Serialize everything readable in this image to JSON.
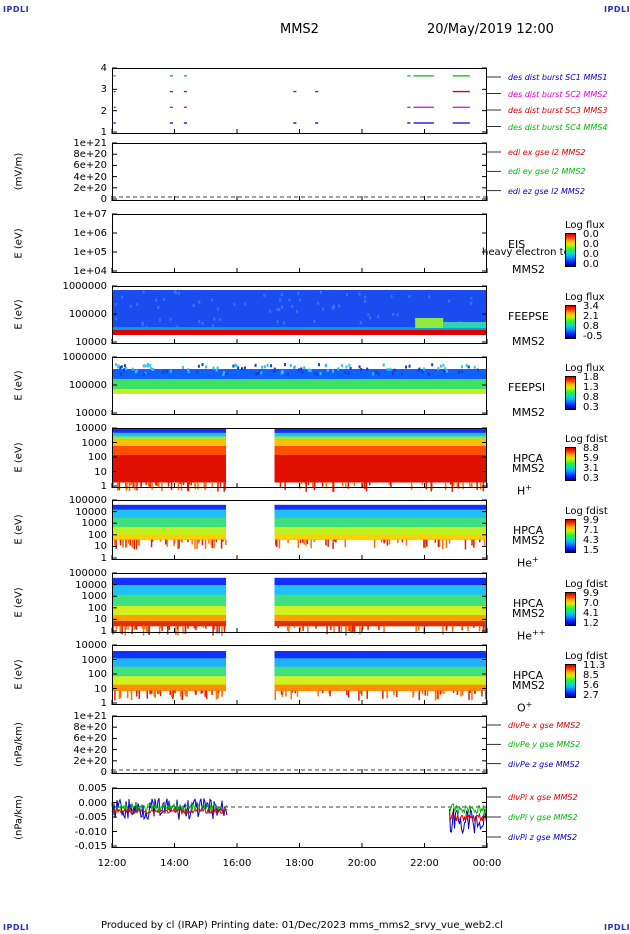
{
  "header": {
    "corner_left_top": "IPDLI",
    "corner_right_top": "IPDLI",
    "corner_left_bottom": "IPDLI",
    "corner_right_bottom": "IPDLI",
    "spacecraft": "MMS2",
    "datetime": "20/May/2019 12:00"
  },
  "footer": {
    "text": "Produced by cl (IRAP)   Printing date: 01/Dec/2023   mms_mms2_srvy_vue_web2.cl"
  },
  "colors": {
    "blue": "#0000cc",
    "magenta": "#dd00dd",
    "red": "#dd0000",
    "green": "#00bb00",
    "black": "#000000"
  },
  "chart_data": {
    "type": "heatmap",
    "x_tick_labels": [
      "12:00",
      "14:00",
      "16:00",
      "18:00",
      "20:00",
      "22:00",
      "00:00"
    ],
    "x_hours": [
      12,
      14,
      16,
      18,
      20,
      22,
      24
    ],
    "xlim_hours": [
      12,
      24
    ],
    "panels": [
      {
        "id": "burst",
        "yticks": [
          "4",
          "3",
          "2",
          "1"
        ],
        "ylabel": "",
        "legend": [
          {
            "text": "des dist burst SC1 MMS1",
            "color": "#0000cc"
          },
          {
            "text": "des dist burst SC2 MMS2",
            "color": "#dd00dd"
          },
          {
            "text": "des dist burst SC3 MMS3",
            "color": "#dd0000"
          },
          {
            "text": "des dist burst SC4 MMS4",
            "color": "#00bb00"
          }
        ],
        "segments": [
          {
            "level": 4,
            "color": "#00bb00",
            "ranges": [
              [
                12.05,
                12.12
              ],
              [
                13.85,
                13.95
              ],
              [
                14.3,
                14.4
              ],
              [
                21.45,
                21.55
              ],
              [
                21.65,
                22.3
              ],
              [
                22.9,
                23.45
              ]
            ]
          },
          {
            "level": 3,
            "color": "#dd0000",
            "ranges": [
              [
                12.05,
                12.12
              ],
              [
                13.85,
                13.95
              ],
              [
                14.3,
                14.4
              ],
              [
                17.8,
                17.9
              ],
              [
                18.5,
                18.6
              ],
              [
                22.9,
                23.45
              ]
            ]
          },
          {
            "level": 2,
            "color": "#dd00dd",
            "ranges": [
              [
                12.05,
                12.12
              ],
              [
                13.85,
                13.95
              ],
              [
                14.3,
                14.4
              ],
              [
                21.45,
                21.55
              ],
              [
                21.65,
                22.3
              ],
              [
                22.9,
                23.45
              ]
            ]
          },
          {
            "level": 1,
            "color": "#0000cc",
            "ranges": [
              [
                12.05,
                12.12
              ],
              [
                13.85,
                13.95
              ],
              [
                14.3,
                14.4
              ],
              [
                17.8,
                17.9
              ],
              [
                18.5,
                18.6
              ],
              [
                21.45,
                21.55
              ],
              [
                21.65,
                22.3
              ],
              [
                22.9,
                23.45
              ]
            ]
          }
        ]
      },
      {
        "id": "edi",
        "ylabel": "(mV/m)",
        "yticks": [
          "1e+21",
          "8e+20",
          "6e+20",
          "4e+20",
          "2e+20",
          "0"
        ],
        "legend": [
          {
            "text": "edi ex gse l2 MMS2",
            "color": "#dd0000"
          },
          {
            "text": "edi ey gse l2 MMS2",
            "color": "#00bb00"
          },
          {
            "text": "edi ez gse l2 MMS2",
            "color": "#0000cc"
          }
        ]
      },
      {
        "id": "eis",
        "ylabel": "E (eV)",
        "yticks": [
          "1e+07",
          "1e+06",
          "1e+05",
          "1e+04"
        ],
        "side_labels": [
          "EIS",
          "MMS2"
        ],
        "overflow_label": "heavy electron to",
        "cb_title": "Log flux",
        "cb_values": [
          "0.0",
          "0.0",
          "0.0",
          "0.0"
        ]
      },
      {
        "id": "feepse",
        "ylabel": "E (eV)",
        "yticks": [
          "1000000",
          "100000",
          "10000"
        ],
        "side_labels": [
          "FEEPSE",
          "MMS2"
        ],
        "cb_title": "Log flux",
        "cb_values": [
          "3.4",
          "2.1",
          "0.8",
          "-0.5"
        ]
      },
      {
        "id": "feepsi",
        "ylabel": "E (eV)",
        "yticks": [
          "1000000",
          "100000",
          "10000"
        ],
        "side_labels": [
          "FEEPSI",
          "MMS2"
        ],
        "cb_title": "Log flux",
        "cb_values": [
          "1.8",
          "1.3",
          "0.8",
          "0.3"
        ]
      },
      {
        "id": "hpca_h",
        "ylabel": "E (eV)",
        "yticks": [
          "10000",
          "1000",
          "100",
          "10",
          "1"
        ],
        "side_labels": [
          "HPCA",
          "MMS2"
        ],
        "species": "H",
        "species_sup": "+",
        "cb_title": "Log fdist",
        "cb_values": [
          "8.8",
          "5.9",
          "3.1",
          "0.3"
        ]
      },
      {
        "id": "hpca_he",
        "ylabel": "E (eV)",
        "yticks": [
          "100000",
          "10000",
          "1000",
          "100",
          "10",
          "1"
        ],
        "side_labels": [
          "HPCA",
          "MMS2"
        ],
        "species": "He",
        "species_sup": "+",
        "cb_title": "Log fdist",
        "cb_values": [
          "9.9",
          "7.1",
          "4.3",
          "1.5"
        ]
      },
      {
        "id": "hpca_hepp",
        "ylabel": "E (eV)",
        "yticks": [
          "100000",
          "10000",
          "1000",
          "100",
          "10",
          "1"
        ],
        "side_labels": [
          "HPCA",
          "MMS2"
        ],
        "species": "He",
        "species_sup": "++",
        "cb_title": "Log fdist",
        "cb_values": [
          "9.9",
          "7.0",
          "4.1",
          "1.2"
        ]
      },
      {
        "id": "hpca_o",
        "ylabel": "E (eV)",
        "yticks": [
          "10000",
          "1000",
          "100",
          "10",
          "1"
        ],
        "side_labels": [
          "HPCA",
          "MMS2"
        ],
        "species": "O",
        "species_sup": "+",
        "cb_title": "Log fdist",
        "cb_values": [
          "11.3",
          "8.5",
          "5.6",
          "2.7"
        ]
      },
      {
        "id": "divpe",
        "ylabel": "(nPa/km)",
        "yticks": [
          "1e+21",
          "8e+20",
          "6e+20",
          "4e+20",
          "2e+20",
          "0"
        ],
        "legend": [
          {
            "text": "divPe x gse MMS2",
            "color": "#dd0000"
          },
          {
            "text": "divPe y gse MMS2",
            "color": "#00bb00"
          },
          {
            "text": "divPe z gse MMS2",
            "color": "#0000cc"
          }
        ]
      },
      {
        "id": "divpi",
        "ylabel": "(nPa/km)",
        "yticks": [
          "0.005",
          "0.000",
          "-0.005",
          "-0.010",
          "-0.015"
        ],
        "legend": [
          {
            "text": "divPi x gse MMS2",
            "color": "#dd0000"
          },
          {
            "text": "divPi y gse MMS2",
            "color": "#00bb00"
          },
          {
            "text": "divPi z gse MMS2",
            "color": "#0000cc"
          }
        ]
      }
    ]
  }
}
